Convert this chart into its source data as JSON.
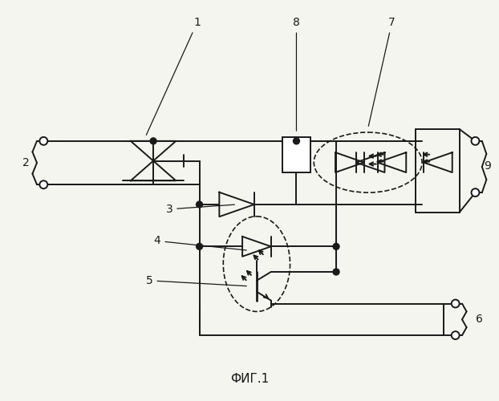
{
  "title": "ФИГ.1",
  "bg_color": "#f5f5f0",
  "line_color": "#1a1a1a",
  "lw": 1.4,
  "label_fs": 10
}
